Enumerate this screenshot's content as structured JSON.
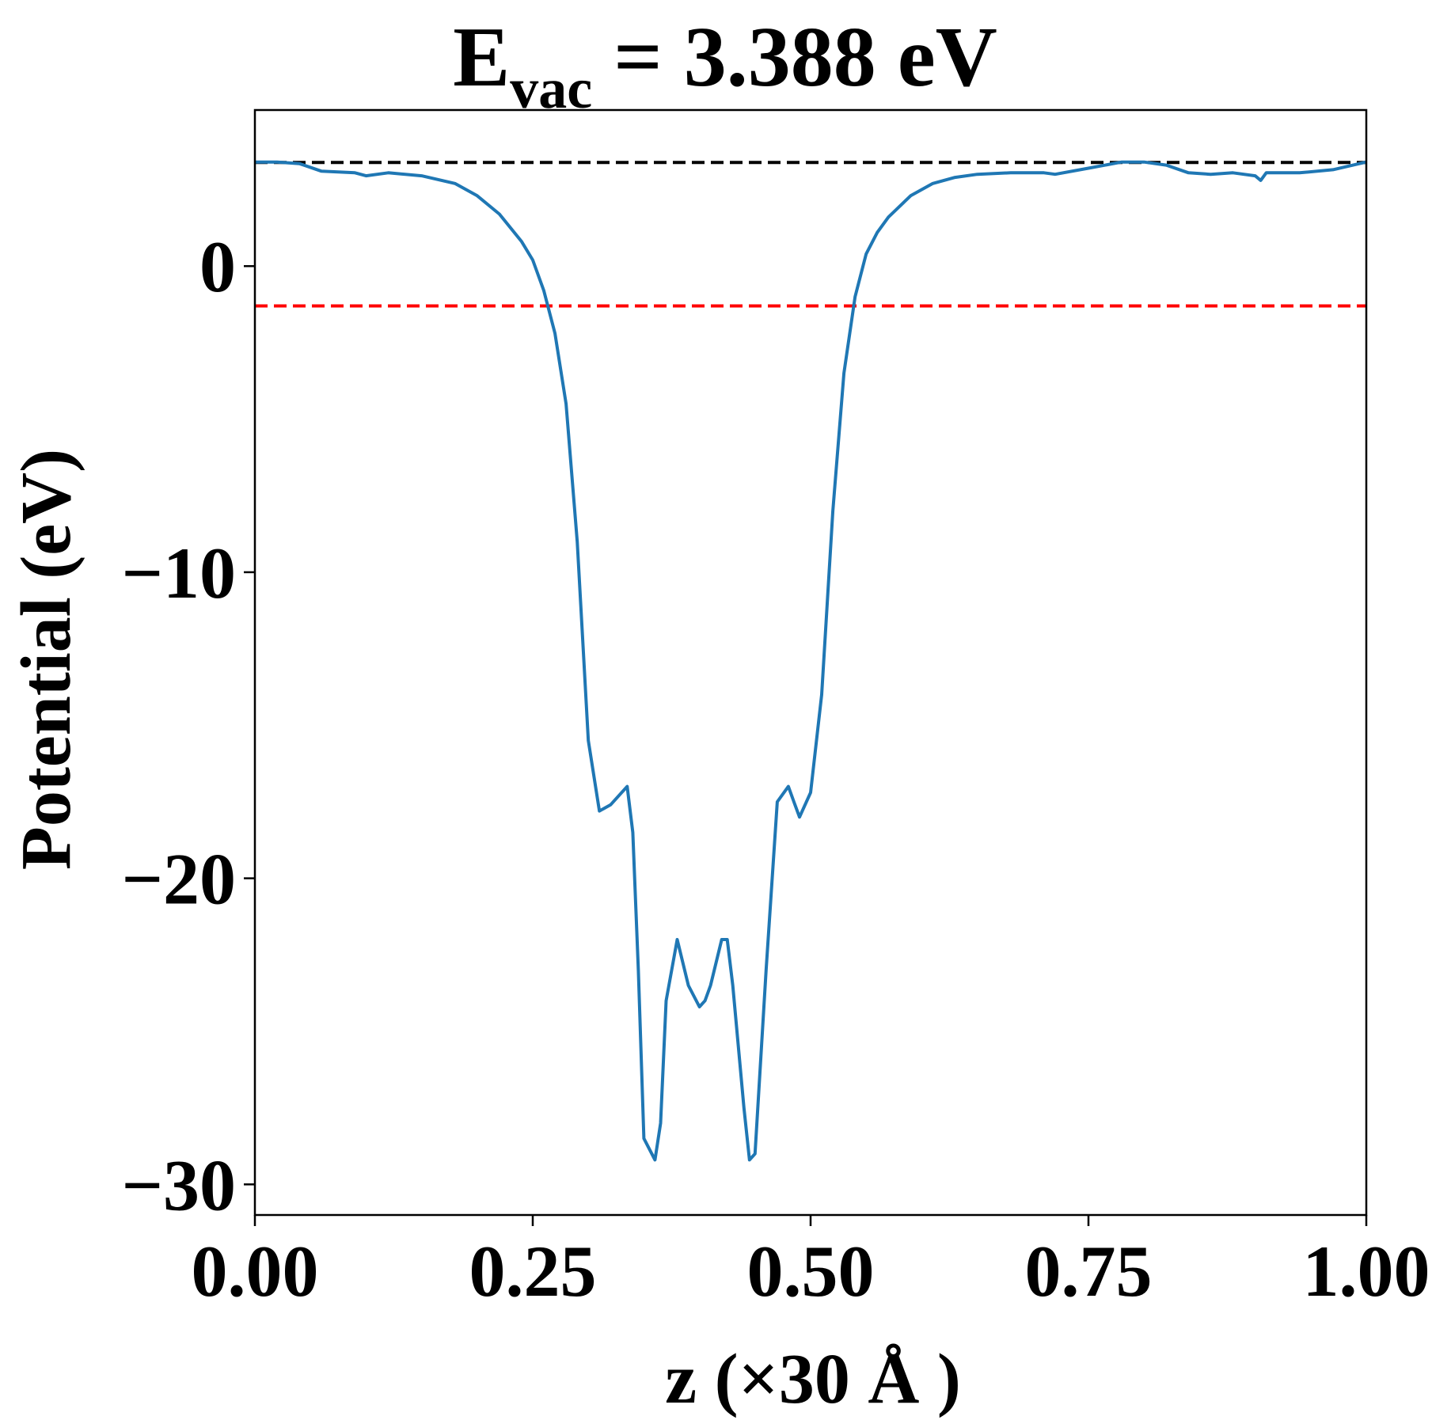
{
  "chart_data": {
    "type": "line",
    "title": {
      "main": "E",
      "subscript": "vac",
      "rest": " = 3.388 eV"
    },
    "xlabel": "z (×30 Å )",
    "ylabel": "Potential (eV)",
    "xlim": [
      0.0,
      1.0
    ],
    "ylim": [
      -31,
      5.1
    ],
    "xticks": [
      0.0,
      0.25,
      0.5,
      0.75,
      1.0
    ],
    "xtick_labels": [
      "0.00",
      "0.25",
      "0.50",
      "0.75",
      "1.00"
    ],
    "yticks": [
      0,
      -10,
      -20,
      -30
    ],
    "ytick_labels": [
      "0",
      "−10",
      "−20",
      "−30"
    ],
    "grid": false,
    "reference_lines": [
      {
        "y": 3.388,
        "color": "#000000",
        "style": "dashed"
      },
      {
        "y": -1.3,
        "color": "#ff0000",
        "style": "dashed"
      }
    ],
    "series": [
      {
        "color": "#1f77b4",
        "x": [
          0.0,
          0.02,
          0.04,
          0.06,
          0.09,
          0.1,
          0.12,
          0.15,
          0.18,
          0.2,
          0.22,
          0.24,
          0.25,
          0.26,
          0.27,
          0.28,
          0.29,
          0.3,
          0.31,
          0.32,
          0.33,
          0.335,
          0.34,
          0.345,
          0.35,
          0.36,
          0.365,
          0.37,
          0.38,
          0.39,
          0.4,
          0.405,
          0.41,
          0.42,
          0.425,
          0.43,
          0.44,
          0.445,
          0.45,
          0.46,
          0.47,
          0.48,
          0.485,
          0.49,
          0.5,
          0.51,
          0.52,
          0.53,
          0.54,
          0.55,
          0.56,
          0.57,
          0.59,
          0.61,
          0.63,
          0.65,
          0.68,
          0.71,
          0.72,
          0.75,
          0.78,
          0.8,
          0.82,
          0.84,
          0.86,
          0.88,
          0.9,
          0.905,
          0.91,
          0.94,
          0.97,
          1.0
        ],
        "y": [
          3.4,
          3.4,
          3.35,
          3.1,
          3.05,
          2.95,
          3.05,
          2.95,
          2.7,
          2.3,
          1.7,
          0.8,
          0.2,
          -0.8,
          -2.2,
          -4.5,
          -9.0,
          -15.5,
          -17.8,
          -17.6,
          -17.2,
          -17.0,
          -18.5,
          -23.0,
          -28.5,
          -29.2,
          -28.0,
          -24.0,
          -22.0,
          -23.5,
          -24.2,
          -24.0,
          -23.5,
          -22.0,
          -22.0,
          -23.5,
          -27.5,
          -29.2,
          -29.0,
          -23.0,
          -17.5,
          -17.0,
          -17.5,
          -18.0,
          -17.2,
          -14.0,
          -8.0,
          -3.5,
          -1.0,
          0.4,
          1.1,
          1.6,
          2.3,
          2.7,
          2.9,
          3.0,
          3.05,
          3.05,
          3.0,
          3.2,
          3.4,
          3.4,
          3.3,
          3.05,
          3.0,
          3.05,
          2.95,
          2.8,
          3.05,
          3.05,
          3.15,
          3.4
        ]
      }
    ]
  }
}
